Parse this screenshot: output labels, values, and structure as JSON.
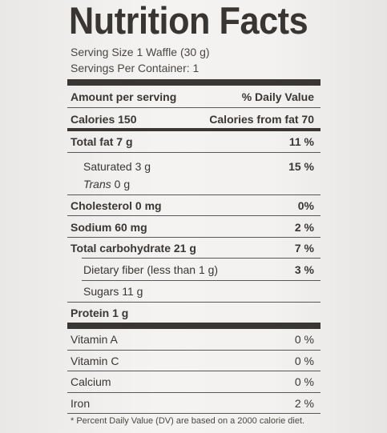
{
  "title": "Nutrition Facts",
  "serving_size": "Serving Size 1 Waffle (30 g)",
  "servings_per_container": "Servings Per Container: 1",
  "header": {
    "amount_per_serving": "Amount per serving",
    "daily_value": "% Daily Value"
  },
  "calories": {
    "label": "Calories 150",
    "from_fat": "Calories from fat 70"
  },
  "nutrients": {
    "total_fat": {
      "label": "Total fat 7 g",
      "dv": "11 %"
    },
    "saturated": {
      "label": "Saturated  3 g",
      "dv": "15 %"
    },
    "trans": {
      "label_italic": "Trans",
      "label": " 0 g"
    },
    "cholesterol": {
      "label": "Cholesterol 0 mg",
      "dv": "0%"
    },
    "sodium": {
      "label": "Sodium 60 mg",
      "dv": "2 %"
    },
    "total_carb": {
      "label": "Total carbohydrate 21 g",
      "dv": "7 %"
    },
    "fiber": {
      "label": "Dietary fiber (less than 1 g)",
      "dv": "3 %"
    },
    "sugars": {
      "label": "Sugars 11 g"
    },
    "protein": {
      "label": "Protein 1 g"
    }
  },
  "vitamins": {
    "vitamin_a": {
      "label": "Vitamin A",
      "dv": "0 %"
    },
    "vitamin_c": {
      "label": "Vitamin C",
      "dv": "0 %"
    },
    "calcium": {
      "label": "Calcium",
      "dv": "0 %"
    },
    "iron": {
      "label": "Iron",
      "dv": "2 %"
    }
  },
  "footnote": "* Percent Daily Value (DV) are based on a 2000 calorie diet."
}
